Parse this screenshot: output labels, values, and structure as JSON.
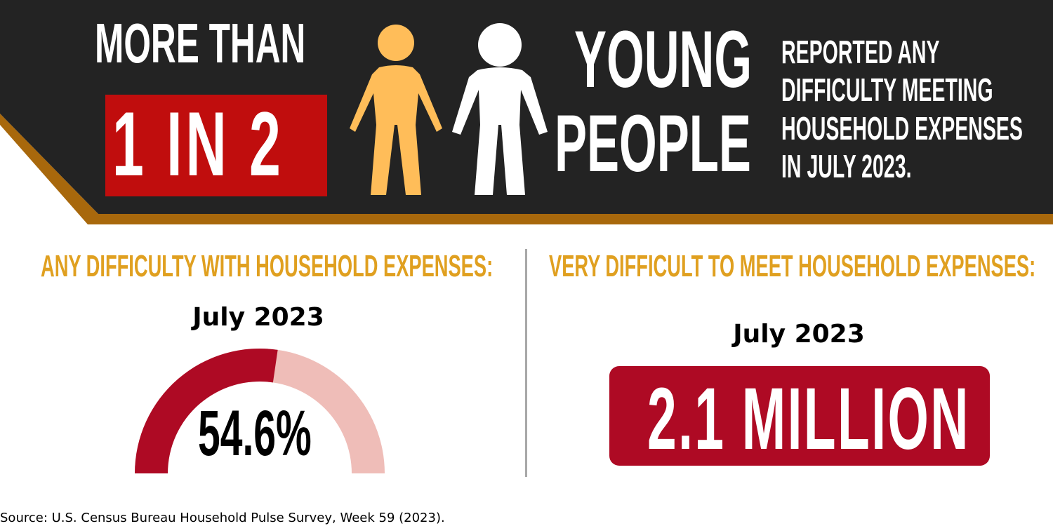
{
  "header": {
    "lead": "MORE THAN",
    "ratio": "1 IN 2",
    "subject_line1": "YOUNG",
    "subject_line2": "PEOPLE",
    "statement": [
      "REPORTED ANY",
      "DIFFICULTY MEETING",
      "HOUSEHOLD EXPENSES",
      "IN JULY 2023."
    ],
    "ratio_value": 0.5
  },
  "left_panel": {
    "title": "ANY DIFFICULTY WITH HOUSEHOLD EXPENSES:",
    "period": "July 2023",
    "value_label": "54.6%",
    "value_fraction": 0.546
  },
  "right_panel": {
    "title": "VERY DIFFICULT TO MEET HOUSEHOLD EXPENSES:",
    "period": "July 2023",
    "value_label": "2.1 MILLION"
  },
  "footer": {
    "source": "Source: U.S. Census Bureau Household Pulse Survey, Week 59 (2023)."
  },
  "colors": {
    "header_bg": "#232323",
    "accent_stripe": "#a8680c",
    "ratio_box": "#c00d0d",
    "figure_highlight": "#ffbd59",
    "figure_default": "#ffffff",
    "section_title": "#e0a020",
    "gauge_filled": "#ae0a24",
    "gauge_track": "#efbdb8",
    "value_box": "#ae0a24"
  },
  "icons": [
    "person-icon-highlighted",
    "person-icon"
  ]
}
